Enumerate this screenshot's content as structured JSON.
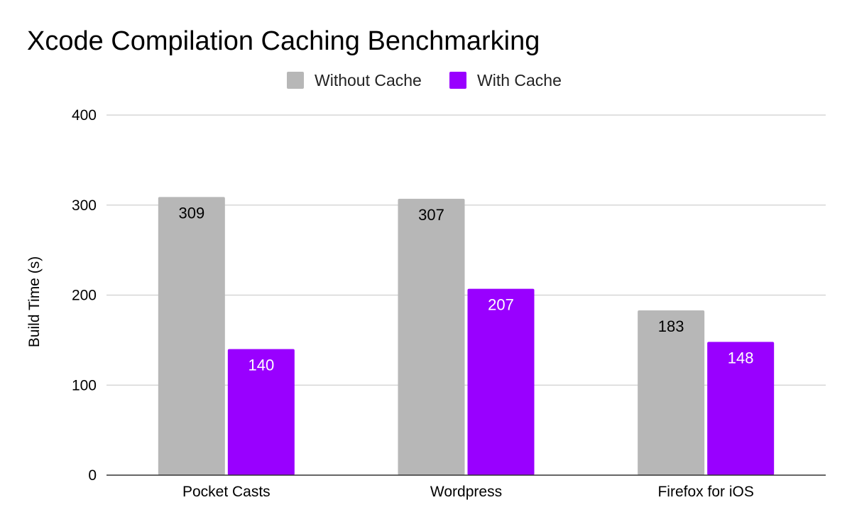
{
  "chart_data": {
    "type": "bar",
    "title": "Xcode Compilation Caching Benchmarking",
    "categories": [
      "Pocket Casts",
      "Wordpress",
      "Firefox for iOS"
    ],
    "series": [
      {
        "name": "Without Cache",
        "values": [
          309,
          307,
          183
        ],
        "color": "#b7b7b7",
        "label_color": "#000000"
      },
      {
        "name": "With Cache",
        "values": [
          140,
          207,
          148
        ],
        "color": "#9900ff",
        "label_color": "#ffffff"
      }
    ],
    "xlabel": "",
    "ylabel": "Build Time (s)",
    "ylim": [
      0,
      400
    ],
    "yticks": [
      0,
      100,
      200,
      300,
      400
    ],
    "grid": true,
    "legend_position": "top"
  }
}
